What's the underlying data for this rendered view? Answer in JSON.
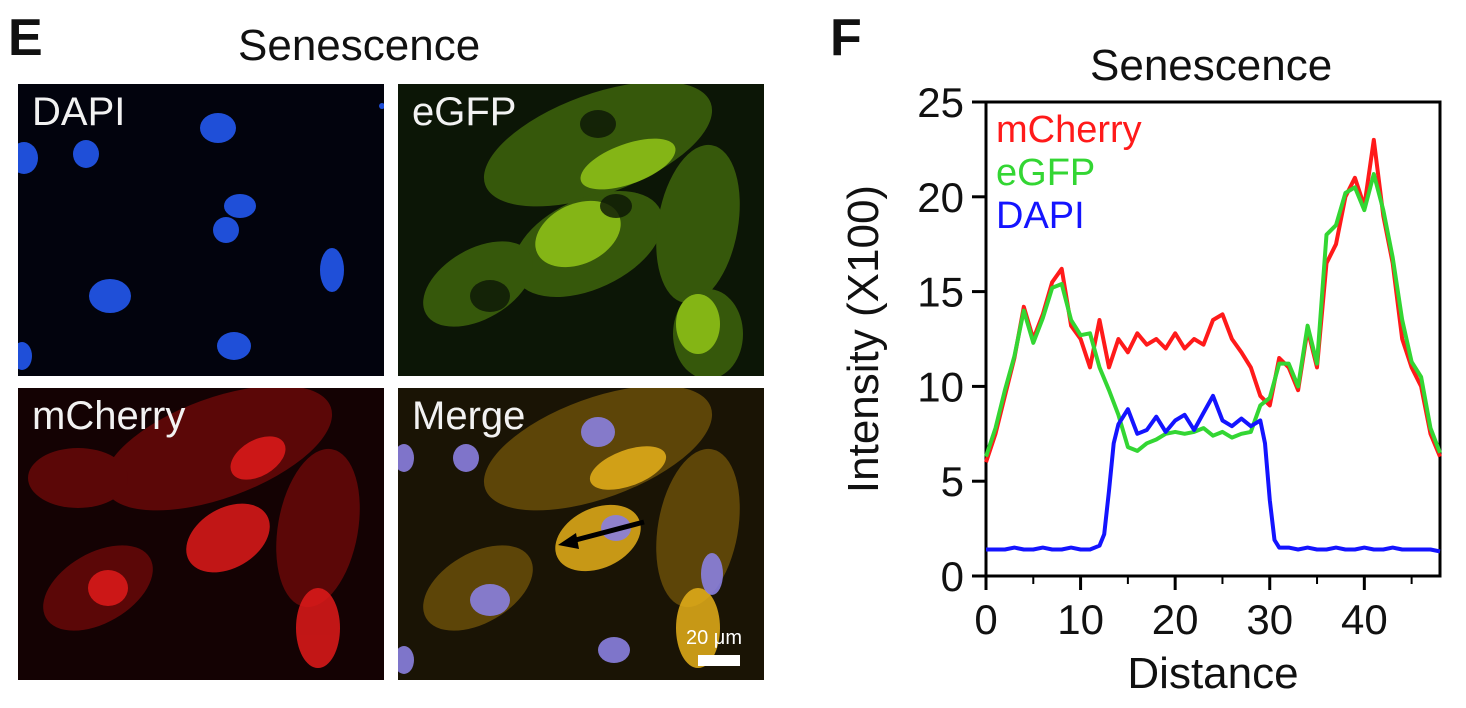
{
  "panel_e": {
    "letter": "E",
    "title": "Senescence",
    "tiles": {
      "dapi": "DAPI",
      "egfp": "eGFP",
      "mcherry": "mCherry",
      "merge": "Merge"
    },
    "scale_bar_label": "20 μm"
  },
  "panel_f": {
    "letter": "F"
  },
  "chart_data": {
    "type": "line",
    "title": "Senescence",
    "xlabel": "Distance",
    "ylabel": "Intensity (X100)",
    "xlim": [
      0,
      48
    ],
    "ylim": [
      0,
      25
    ],
    "xticks": [
      0,
      10,
      20,
      30,
      40
    ],
    "yticks": [
      0,
      5,
      10,
      15,
      20,
      25
    ],
    "legend_position": "top-left",
    "series": [
      {
        "name": "mCherry",
        "color": "#ff1a1a",
        "x": [
          0,
          1,
          2,
          3,
          4,
          5,
          6,
          7,
          8,
          9,
          10,
          11,
          12,
          13,
          14,
          15,
          16,
          17,
          18,
          19,
          20,
          21,
          22,
          23,
          24,
          25,
          26,
          27,
          28,
          29,
          30,
          31,
          32,
          33,
          34,
          35,
          36,
          37,
          38,
          39,
          40,
          41,
          42,
          43,
          44,
          45,
          46,
          47,
          48
        ],
        "y": [
          6.0,
          7.5,
          9.5,
          11.5,
          14.2,
          12.5,
          13.8,
          15.5,
          16.2,
          13.2,
          12.5,
          11.0,
          13.5,
          11.0,
          12.5,
          11.8,
          12.8,
          12.2,
          12.5,
          12.0,
          12.8,
          12.0,
          12.5,
          12.2,
          13.5,
          13.8,
          12.5,
          11.8,
          11.0,
          9.5,
          9.0,
          11.5,
          11.0,
          9.8,
          13.0,
          11.0,
          16.5,
          17.5,
          20.0,
          21.0,
          19.5,
          23.0,
          19.0,
          16.5,
          12.5,
          11.0,
          10.0,
          7.5,
          6.3
        ]
      },
      {
        "name": "eGFP",
        "color": "#33d633",
        "x": [
          0,
          1,
          2,
          3,
          4,
          5,
          6,
          7,
          8,
          9,
          10,
          11,
          12,
          13,
          14,
          15,
          16,
          17,
          18,
          19,
          20,
          21,
          22,
          23,
          24,
          25,
          26,
          27,
          28,
          29,
          30,
          31,
          32,
          33,
          34,
          35,
          36,
          37,
          38,
          39,
          40,
          41,
          42,
          43,
          44,
          45,
          46,
          47,
          48
        ],
        "y": [
          6.3,
          7.8,
          9.8,
          11.6,
          14.0,
          12.3,
          13.6,
          15.2,
          15.4,
          13.5,
          12.7,
          12.8,
          11.0,
          9.8,
          8.5,
          6.8,
          6.6,
          7.0,
          7.2,
          7.5,
          7.6,
          7.5,
          7.6,
          7.8,
          7.4,
          7.6,
          7.3,
          7.5,
          7.6,
          9.0,
          9.4,
          11.2,
          11.2,
          10.0,
          13.2,
          11.2,
          18.0,
          18.5,
          20.2,
          20.5,
          19.3,
          21.2,
          19.3,
          16.8,
          13.5,
          11.3,
          10.5,
          7.8,
          6.5
        ]
      },
      {
        "name": "DAPI",
        "color": "#1414ff",
        "x": [
          0,
          1,
          2,
          3,
          4,
          5,
          6,
          7,
          8,
          9,
          10,
          11,
          12,
          12.5,
          13,
          13.5,
          14,
          15,
          16,
          17,
          18,
          19,
          20,
          21,
          22,
          23,
          24,
          25,
          26,
          27,
          28,
          29,
          29.5,
          30,
          30.5,
          31,
          32,
          33,
          34,
          35,
          36,
          37,
          38,
          39,
          40,
          41,
          42,
          43,
          44,
          45,
          46,
          47,
          48
        ],
        "y": [
          1.4,
          1.4,
          1.4,
          1.5,
          1.4,
          1.4,
          1.5,
          1.4,
          1.4,
          1.5,
          1.4,
          1.4,
          1.6,
          2.2,
          4.5,
          7.0,
          8.0,
          8.8,
          7.5,
          7.7,
          8.4,
          7.6,
          8.2,
          8.5,
          7.7,
          8.6,
          9.5,
          8.2,
          7.9,
          8.3,
          7.9,
          8.2,
          7.0,
          4.0,
          1.9,
          1.5,
          1.5,
          1.4,
          1.5,
          1.4,
          1.4,
          1.5,
          1.4,
          1.4,
          1.5,
          1.4,
          1.4,
          1.5,
          1.4,
          1.4,
          1.4,
          1.4,
          1.3
        ]
      }
    ]
  }
}
